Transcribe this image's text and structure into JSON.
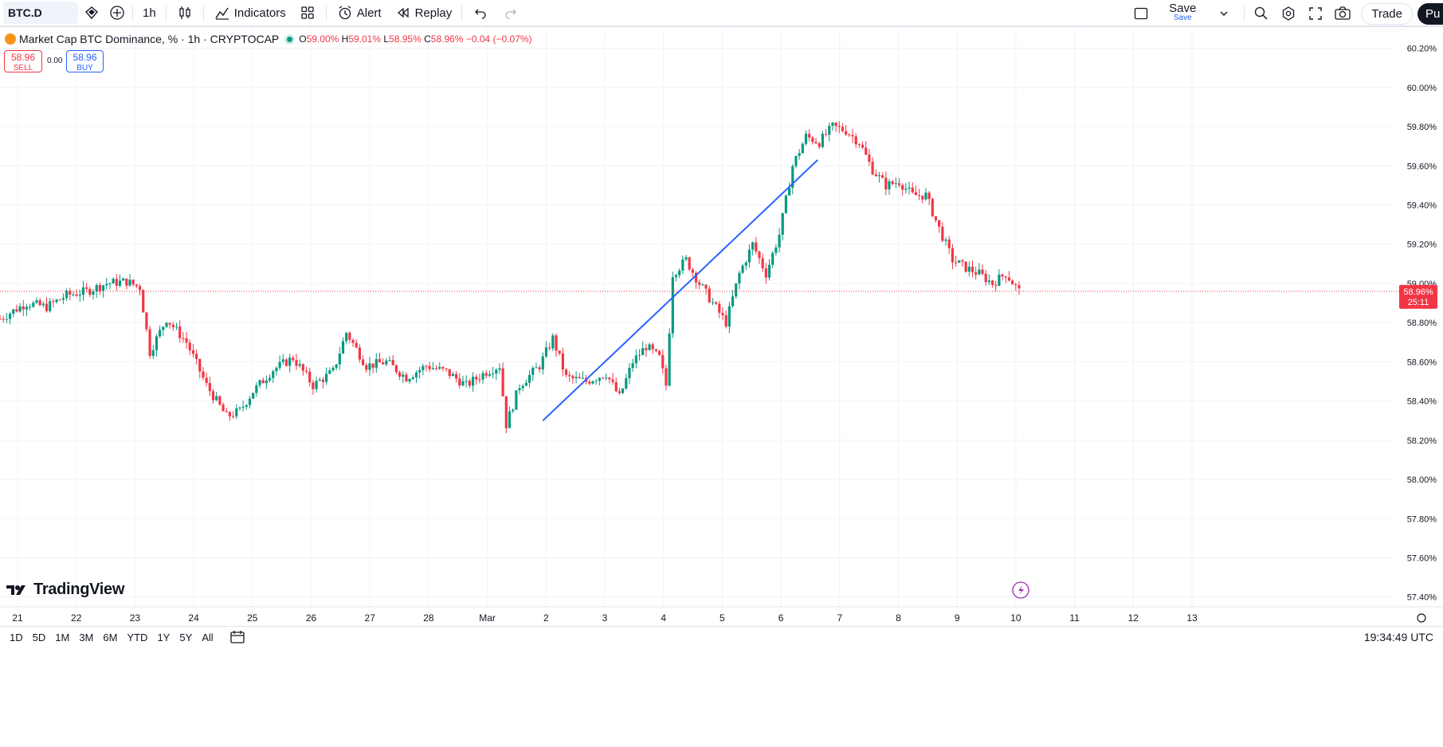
{
  "toolbar": {
    "symbol": "BTC.D",
    "interval": "1h",
    "indicators_label": "Indicators",
    "alert_label": "Alert",
    "replay_label": "Replay",
    "save_label": "Save",
    "save_sub_label": "Save",
    "trade_label": "Trade",
    "publish_label": "Pu"
  },
  "legend": {
    "title": "Market Cap BTC Dominance, % · 1h · CRYPTOCAP",
    "o_key": "O",
    "o_val": "59.00%",
    "h_key": "H",
    "h_val": "59.01%",
    "l_key": "L",
    "l_val": "58.95%",
    "c_key": "C",
    "c_val": "58.96%",
    "change": "−0.04 (−0.07%)"
  },
  "trade_panel": {
    "sell_price": "58.96",
    "sell_label": "SELL",
    "spread": "0.00",
    "buy_price": "58.96",
    "buy_label": "BUY"
  },
  "brand": "TradingView",
  "price_axis": {
    "labels": [
      "60.20%",
      "60.00%",
      "59.80%",
      "59.60%",
      "59.40%",
      "59.20%",
      "59.00%",
      "58.80%",
      "58.60%",
      "58.40%",
      "58.20%",
      "58.00%",
      "57.80%",
      "57.60%",
      "57.40%"
    ],
    "current_price": "58.96%",
    "countdown": "25:11"
  },
  "time_axis": {
    "labels": [
      "21",
      "22",
      "23",
      "24",
      "25",
      "26",
      "27",
      "28",
      "Mar",
      "2",
      "3",
      "4",
      "5",
      "6",
      "7",
      "8",
      "9",
      "10",
      "11",
      "12",
      "13"
    ]
  },
  "ranges": [
    "1D",
    "5D",
    "1M",
    "3M",
    "6M",
    "YTD",
    "1Y",
    "5Y",
    "All"
  ],
  "clock": "19:34:49 UTC",
  "colors": {
    "up": "#089981",
    "down": "#f23645",
    "trendline": "#2962ff",
    "accent": "#2962ff"
  },
  "chart_data": {
    "type": "candlestick",
    "title": "Market Cap BTC Dominance, % · 1h · CRYPTOCAP",
    "ylim": [
      57.35,
      60.3
    ],
    "x_labels": [
      "21",
      "22",
      "23",
      "24",
      "25",
      "26",
      "27",
      "28",
      "Mar",
      "2",
      "3",
      "4",
      "5",
      "6",
      "7",
      "8",
      "9",
      "10",
      "11",
      "12",
      "13"
    ],
    "close_anchors": [
      [
        0,
        58.82
      ],
      [
        8,
        58.9
      ],
      [
        14,
        58.88
      ],
      [
        20,
        58.94
      ],
      [
        26,
        58.96
      ],
      [
        32,
        59.0
      ],
      [
        38,
        59.01
      ],
      [
        42,
        58.98
      ],
      [
        45,
        58.65
      ],
      [
        50,
        58.82
      ],
      [
        56,
        58.7
      ],
      [
        62,
        58.48
      ],
      [
        68,
        58.32
      ],
      [
        72,
        58.35
      ],
      [
        76,
        58.45
      ],
      [
        82,
        58.56
      ],
      [
        88,
        58.62
      ],
      [
        94,
        58.48
      ],
      [
        100,
        58.55
      ],
      [
        104,
        58.75
      ],
      [
        110,
        58.58
      ],
      [
        116,
        58.6
      ],
      [
        122,
        58.52
      ],
      [
        128,
        58.58
      ],
      [
        134,
        58.55
      ],
      [
        140,
        58.48
      ],
      [
        146,
        58.55
      ],
      [
        150,
        58.58
      ],
      [
        152,
        58.28
      ],
      [
        156,
        58.48
      ],
      [
        162,
        58.58
      ],
      [
        166,
        58.72
      ],
      [
        170,
        58.52
      ],
      [
        176,
        58.5
      ],
      [
        182,
        58.54
      ],
      [
        186,
        58.42
      ],
      [
        190,
        58.6
      ],
      [
        194,
        58.68
      ],
      [
        198,
        58.62
      ],
      [
        200,
        58.48
      ],
      [
        202,
        59.05
      ],
      [
        206,
        59.12
      ],
      [
        210,
        59.0
      ],
      [
        214,
        58.9
      ],
      [
        218,
        58.8
      ],
      [
        222,
        59.05
      ],
      [
        226,
        59.2
      ],
      [
        230,
        59.05
      ],
      [
        234,
        59.25
      ],
      [
        238,
        59.6
      ],
      [
        242,
        59.75
      ],
      [
        246,
        59.72
      ],
      [
        250,
        59.8
      ],
      [
        254,
        59.78
      ],
      [
        258,
        59.72
      ],
      [
        262,
        59.58
      ],
      [
        266,
        59.5
      ],
      [
        270,
        59.52
      ],
      [
        274,
        59.45
      ],
      [
        278,
        59.45
      ],
      [
        282,
        59.28
      ],
      [
        286,
        59.12
      ],
      [
        290,
        59.08
      ],
      [
        294,
        59.05
      ],
      [
        298,
        59.0
      ],
      [
        302,
        59.05
      ],
      [
        306,
        58.96
      ]
    ],
    "trendline": {
      "from": [
        "2",
        58.3
      ],
      "to": [
        "6",
        59.63
      ]
    },
    "last_price": 58.96
  }
}
